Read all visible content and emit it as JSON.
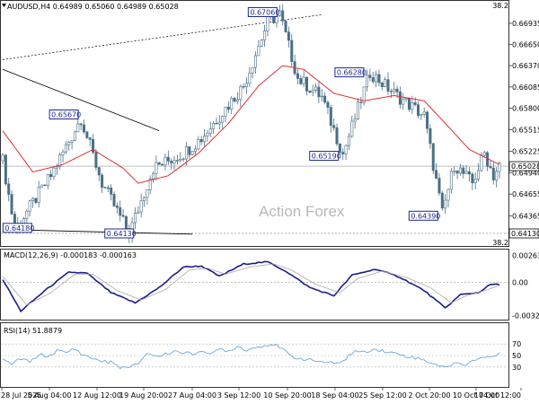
{
  "header": {
    "symbol_line": "AUDUSD,H4  0.64989 0.65060 0.64989 0.65028",
    "fibo_top": "38.2",
    "fibo_bottom": "38.2"
  },
  "watermark": "Action Forex",
  "colors": {
    "candle": "#4a6f86",
    "ma": "#e03030",
    "macd": "#1b1f8a",
    "signal": "#a9a9a9",
    "rsi": "#6aa7dd",
    "annotation": "#1f2a8a"
  },
  "chart_data": [
    {
      "type": "candlestick",
      "panel": "price",
      "ylim": [
        0.6401,
        0.6715
      ],
      "y_ticks": [
        "0.66935",
        "0.66650",
        "0.66370",
        "0.66085",
        "0.65800",
        "0.65515",
        "0.65225",
        "0.64940",
        "0.64655",
        "0.64365"
      ],
      "current_price": "0.65028",
      "low_marker": "0.64130",
      "x_ticks": [
        "28 Jul 2025",
        "5 Aug 04:00",
        "12 Aug 12:00",
        "19 Aug 20:00",
        "27 Aug 04:00",
        "3 Sep 12:00",
        "10 Sep 20:00",
        "18 Sep 04:00",
        "25 Sep 12:00",
        "2 Oct 20:00",
        "10 Oct 04:00",
        "17 Oct 12:00"
      ],
      "annotations": [
        "0.64180",
        "0.65670",
        "0.64130",
        "0.67060",
        "0.65190",
        "0.66280",
        "0.64390"
      ],
      "key_points": [
        {
          "i": 0,
          "v": 0.651
        },
        {
          "i": 4,
          "v": 0.6418
        },
        {
          "i": 16,
          "v": 0.649
        },
        {
          "i": 26,
          "v": 0.6567
        },
        {
          "i": 33,
          "v": 0.648
        },
        {
          "i": 42,
          "v": 0.6413
        },
        {
          "i": 50,
          "v": 0.65
        },
        {
          "i": 60,
          "v": 0.652
        },
        {
          "i": 66,
          "v": 0.654
        },
        {
          "i": 80,
          "v": 0.661
        },
        {
          "i": 88,
          "v": 0.6695
        },
        {
          "i": 92,
          "v": 0.6706
        },
        {
          "i": 98,
          "v": 0.662
        },
        {
          "i": 106,
          "v": 0.6595
        },
        {
          "i": 113,
          "v": 0.6519
        },
        {
          "i": 122,
          "v": 0.6628
        },
        {
          "i": 130,
          "v": 0.66
        },
        {
          "i": 140,
          "v": 0.657
        },
        {
          "i": 146,
          "v": 0.6439
        },
        {
          "i": 150,
          "v": 0.6505
        },
        {
          "i": 156,
          "v": 0.648
        },
        {
          "i": 160,
          "v": 0.652
        },
        {
          "i": 163,
          "v": 0.649
        },
        {
          "i": 165,
          "v": 0.6503
        }
      ],
      "moving_average_points": [
        {
          "i": 0,
          "v": 0.655
        },
        {
          "i": 10,
          "v": 0.6495
        },
        {
          "i": 20,
          "v": 0.6505
        },
        {
          "i": 30,
          "v": 0.6525
        },
        {
          "i": 40,
          "v": 0.65
        },
        {
          "i": 45,
          "v": 0.648
        },
        {
          "i": 55,
          "v": 0.649
        },
        {
          "i": 65,
          "v": 0.652
        },
        {
          "i": 75,
          "v": 0.656
        },
        {
          "i": 85,
          "v": 0.661
        },
        {
          "i": 93,
          "v": 0.6637
        },
        {
          "i": 100,
          "v": 0.6632
        },
        {
          "i": 110,
          "v": 0.66
        },
        {
          "i": 120,
          "v": 0.659
        },
        {
          "i": 130,
          "v": 0.6597
        },
        {
          "i": 140,
          "v": 0.659
        },
        {
          "i": 147,
          "v": 0.656
        },
        {
          "i": 155,
          "v": 0.6525
        },
        {
          "i": 165,
          "v": 0.6505
        }
      ]
    },
    {
      "type": "line",
      "panel": "macd",
      "label": "MACD(12,26,9) -0.000183 -0.000163",
      "ylim": [
        -0.00345,
        0.00285
      ],
      "y_ticks": [
        "0.002639",
        "0.00",
        "-0.003238"
      ],
      "series": [
        {
          "points": [
            {
              "i": 0,
              "v": 0.0003
            },
            {
              "i": 6,
              "v": -0.0028
            },
            {
              "i": 14,
              "v": -0.0008
            },
            {
              "i": 22,
              "v": 0.001
            },
            {
              "i": 28,
              "v": 0.0009
            },
            {
              "i": 36,
              "v": -0.001
            },
            {
              "i": 44,
              "v": -0.002
            },
            {
              "i": 52,
              "v": -0.0005
            },
            {
              "i": 60,
              "v": 0.0015
            },
            {
              "i": 66,
              "v": 0.0016
            },
            {
              "i": 72,
              "v": 0.0006
            },
            {
              "i": 80,
              "v": 0.0018
            },
            {
              "i": 88,
              "v": 0.002
            },
            {
              "i": 94,
              "v": 0.0011
            },
            {
              "i": 102,
              "v": -0.0005
            },
            {
              "i": 110,
              "v": -0.0013
            },
            {
              "i": 116,
              "v": 0.0007
            },
            {
              "i": 124,
              "v": 0.0013
            },
            {
              "i": 132,
              "v": 0.0005
            },
            {
              "i": 140,
              "v": -0.0008
            },
            {
              "i": 147,
              "v": -0.0025
            },
            {
              "i": 152,
              "v": -0.0012
            },
            {
              "i": 158,
              "v": -0.001
            },
            {
              "i": 162,
              "v": -0.0002
            },
            {
              "i": 165,
              "v": -0.0002
            }
          ]
        },
        {
          "points": [
            {
              "i": 0,
              "v": 0.0006
            },
            {
              "i": 8,
              "v": -0.0022
            },
            {
              "i": 16,
              "v": -0.001
            },
            {
              "i": 24,
              "v": 0.0008
            },
            {
              "i": 30,
              "v": 0.0008
            },
            {
              "i": 38,
              "v": -0.0008
            },
            {
              "i": 46,
              "v": -0.0017
            },
            {
              "i": 54,
              "v": -0.0007
            },
            {
              "i": 62,
              "v": 0.0012
            },
            {
              "i": 68,
              "v": 0.0014
            },
            {
              "i": 74,
              "v": 0.0008
            },
            {
              "i": 82,
              "v": 0.0015
            },
            {
              "i": 90,
              "v": 0.0018
            },
            {
              "i": 96,
              "v": 0.0012
            },
            {
              "i": 104,
              "v": -0.0002
            },
            {
              "i": 112,
              "v": -0.001
            },
            {
              "i": 118,
              "v": 0.0004
            },
            {
              "i": 126,
              "v": 0.0011
            },
            {
              "i": 134,
              "v": 0.0005
            },
            {
              "i": 142,
              "v": -0.0005
            },
            {
              "i": 149,
              "v": -0.002
            },
            {
              "i": 154,
              "v": -0.0013
            },
            {
              "i": 160,
              "v": -0.0008
            },
            {
              "i": 165,
              "v": -0.0003
            }
          ]
        }
      ]
    },
    {
      "type": "line",
      "panel": "rsi",
      "label": "RSI(14) 51.8879",
      "ylim": [
        0,
        100
      ],
      "y_ticks": [
        "70",
        "50",
        "30"
      ],
      "series": [
        {
          "points": [
            {
              "i": 0,
              "v": 42
            },
            {
              "i": 3,
              "v": 35
            },
            {
              "i": 6,
              "v": 45
            },
            {
              "i": 9,
              "v": 38
            },
            {
              "i": 12,
              "v": 52
            },
            {
              "i": 15,
              "v": 48
            },
            {
              "i": 18,
              "v": 58
            },
            {
              "i": 21,
              "v": 55
            },
            {
              "i": 24,
              "v": 62
            },
            {
              "i": 27,
              "v": 50
            },
            {
              "i": 30,
              "v": 45
            },
            {
              "i": 33,
              "v": 40
            },
            {
              "i": 36,
              "v": 38
            },
            {
              "i": 39,
              "v": 30
            },
            {
              "i": 42,
              "v": 28
            },
            {
              "i": 45,
              "v": 36
            },
            {
              "i": 48,
              "v": 55
            },
            {
              "i": 51,
              "v": 48
            },
            {
              "i": 54,
              "v": 52
            },
            {
              "i": 57,
              "v": 58
            },
            {
              "i": 60,
              "v": 55
            },
            {
              "i": 63,
              "v": 52
            },
            {
              "i": 66,
              "v": 60
            },
            {
              "i": 69,
              "v": 50
            },
            {
              "i": 72,
              "v": 62
            },
            {
              "i": 75,
              "v": 58
            },
            {
              "i": 78,
              "v": 66
            },
            {
              "i": 81,
              "v": 60
            },
            {
              "i": 84,
              "v": 64
            },
            {
              "i": 87,
              "v": 68
            },
            {
              "i": 90,
              "v": 70
            },
            {
              "i": 93,
              "v": 60
            },
            {
              "i": 96,
              "v": 48
            },
            {
              "i": 99,
              "v": 45
            },
            {
              "i": 102,
              "v": 42
            },
            {
              "i": 105,
              "v": 40
            },
            {
              "i": 108,
              "v": 38
            },
            {
              "i": 111,
              "v": 35
            },
            {
              "i": 114,
              "v": 45
            },
            {
              "i": 117,
              "v": 58
            },
            {
              "i": 120,
              "v": 55
            },
            {
              "i": 123,
              "v": 62
            },
            {
              "i": 126,
              "v": 58
            },
            {
              "i": 129,
              "v": 55
            },
            {
              "i": 132,
              "v": 52
            },
            {
              "i": 135,
              "v": 48
            },
            {
              "i": 138,
              "v": 45
            },
            {
              "i": 141,
              "v": 40
            },
            {
              "i": 144,
              "v": 35
            },
            {
              "i": 147,
              "v": 28
            },
            {
              "i": 150,
              "v": 38
            },
            {
              "i": 153,
              "v": 32
            },
            {
              "i": 156,
              "v": 42
            },
            {
              "i": 159,
              "v": 46
            },
            {
              "i": 162,
              "v": 48
            },
            {
              "i": 165,
              "v": 52
            }
          ]
        }
      ]
    }
  ]
}
